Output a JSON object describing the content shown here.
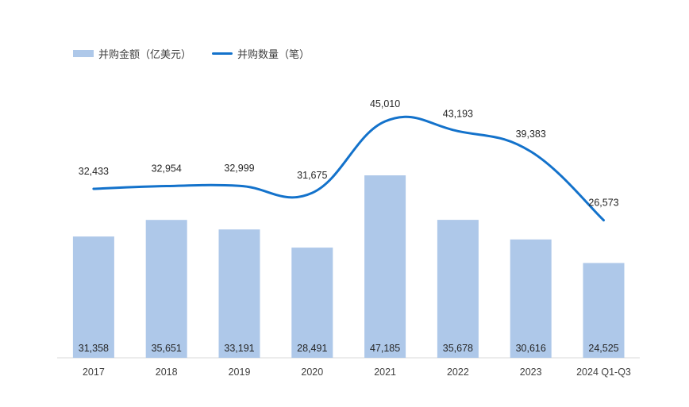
{
  "chart_data": {
    "type": "bar",
    "categories": [
      "2017",
      "2018",
      "2019",
      "2020",
      "2021",
      "2022",
      "2023",
      "2024 Q1-Q3"
    ],
    "series": [
      {
        "name": "并购金额（亿美元）",
        "type": "bar",
        "values": [
          31358,
          35651,
          33191,
          28491,
          47185,
          35678,
          30616,
          24525
        ],
        "labels": [
          "31,358",
          "35,651",
          "33,191",
          "28,491",
          "47,185",
          "35,678",
          "30,616",
          "24,525"
        ],
        "color": "#aec8e9"
      },
      {
        "name": "并购数量（笔）",
        "type": "line",
        "values": [
          32433,
          32954,
          32999,
          31675,
          45010,
          43193,
          39383,
          26573
        ],
        "labels": [
          "32,433",
          "32,954",
          "32,999",
          "31,675",
          "45,010",
          "43,193",
          "39,383",
          "26,573"
        ],
        "color": "#1372cb"
      }
    ],
    "legend_position": "top-left",
    "grid": false
  }
}
